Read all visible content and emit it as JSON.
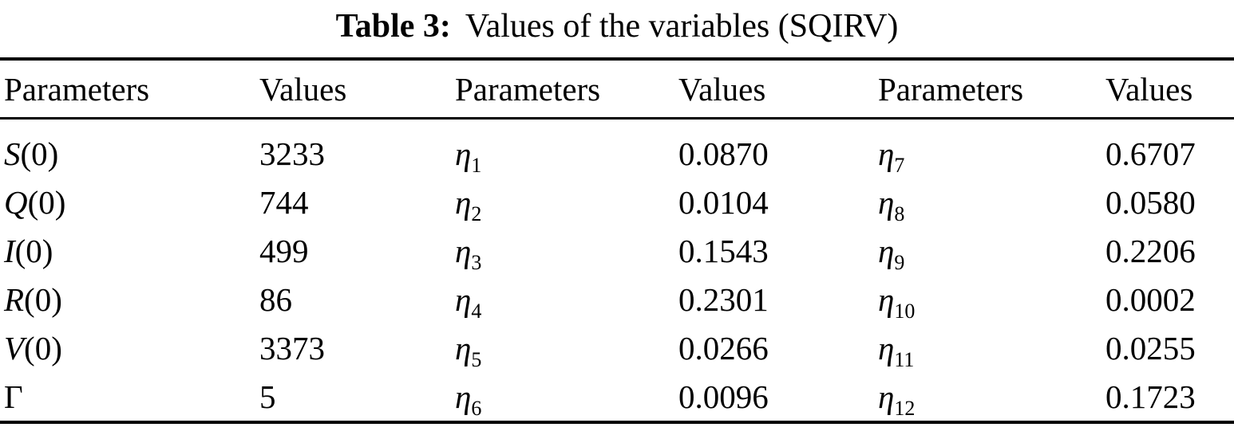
{
  "caption": {
    "label": "Table 3:",
    "text": "Values of the variables (SQIRV)"
  },
  "table": {
    "headers": [
      "Parameters",
      "Values",
      "Parameters",
      "Values",
      "Parameters",
      "Values"
    ],
    "rows": [
      [
        {
          "it": "S",
          "rm": "(0)"
        },
        {
          "text": "3233"
        },
        {
          "it": "η",
          "sub": "1"
        },
        {
          "text": "0.0870"
        },
        {
          "it": "η",
          "sub": "7"
        },
        {
          "text": "0.6707"
        }
      ],
      [
        {
          "it": "Q",
          "rm": "(0)"
        },
        {
          "text": "744"
        },
        {
          "it": "η",
          "sub": "2"
        },
        {
          "text": "0.0104"
        },
        {
          "it": "η",
          "sub": "8"
        },
        {
          "text": "0.0580"
        }
      ],
      [
        {
          "it": "I",
          "rm": "(0)"
        },
        {
          "text": "499"
        },
        {
          "it": "η",
          "sub": "3"
        },
        {
          "text": "0.1543"
        },
        {
          "it": "η",
          "sub": "9"
        },
        {
          "text": "0.2206"
        }
      ],
      [
        {
          "it": "R",
          "rm": "(0)"
        },
        {
          "text": "86"
        },
        {
          "it": "η",
          "sub": "4"
        },
        {
          "text": "0.2301"
        },
        {
          "it": "η",
          "sub": "10"
        },
        {
          "text": "0.0002"
        }
      ],
      [
        {
          "it": "V",
          "rm": "(0)"
        },
        {
          "text": "3373"
        },
        {
          "it": "η",
          "sub": "5"
        },
        {
          "text": "0.0266"
        },
        {
          "it": "η",
          "sub": "11"
        },
        {
          "text": "0.0255"
        }
      ],
      [
        {
          "rm": "Γ"
        },
        {
          "text": "5"
        },
        {
          "it": "η",
          "sub": "6"
        },
        {
          "text": "0.0096"
        },
        {
          "it": "η",
          "sub": "12"
        },
        {
          "text": "0.1723"
        }
      ]
    ]
  },
  "colors": {
    "text": "#000000",
    "background": "#ffffff",
    "rule": "#000000"
  }
}
